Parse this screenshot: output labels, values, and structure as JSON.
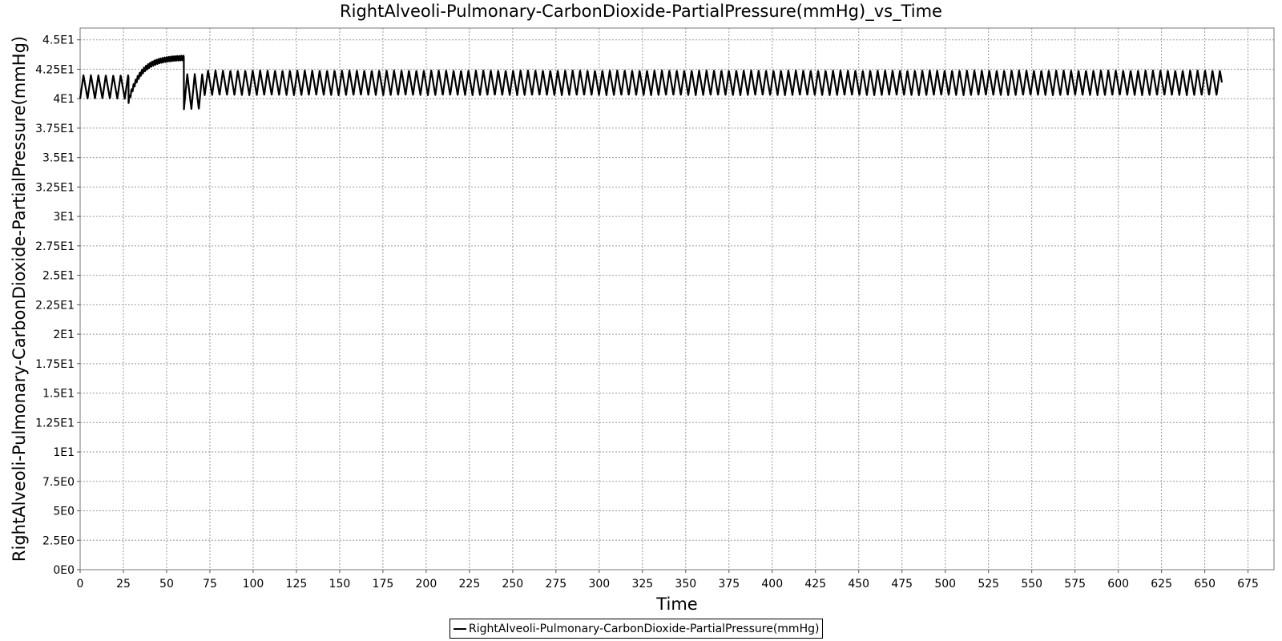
{
  "chart_data": {
    "type": "line",
    "title": "RightAlveoli-Pulmonary-CarbonDioxide-PartialPressure(mmHg)_vs_Time",
    "xlabel": "Time",
    "ylabel": "RightAlveoli-Pulmonary-CarbonDioxide-PartialPressure(mmHg)",
    "xlim": [
      0,
      690
    ],
    "ylim": [
      0,
      46
    ],
    "x_ticks": [
      0,
      25,
      50,
      75,
      100,
      125,
      150,
      175,
      200,
      225,
      250,
      275,
      300,
      325,
      350,
      375,
      400,
      425,
      450,
      475,
      500,
      525,
      550,
      575,
      600,
      625,
      650,
      675
    ],
    "x_tick_labels": [
      "0",
      "25",
      "50",
      "75",
      "100",
      "125",
      "150",
      "175",
      "200",
      "225",
      "250",
      "275",
      "300",
      "325",
      "350",
      "375",
      "400",
      "425",
      "450",
      "475",
      "500",
      "525",
      "550",
      "575",
      "600",
      "625",
      "650",
      "675"
    ],
    "y_ticks": [
      0,
      2.5,
      5,
      7.5,
      10,
      12.5,
      15,
      17.5,
      20,
      22.5,
      25,
      27.5,
      30,
      32.5,
      35,
      37.5,
      40,
      42.5,
      45
    ],
    "y_tick_labels": [
      "0E0",
      "2.5E0",
      "5E0",
      "7.5E0",
      "1E1",
      "1.25E1",
      "1.5E1",
      "1.75E1",
      "2E1",
      "2.25E1",
      "2.5E1",
      "2.75E1",
      "3E1",
      "3.25E1",
      "3.5E1",
      "3.75E1",
      "4E1",
      "4.25E1",
      "4.5E1"
    ],
    "grid": true,
    "legend_position": "bottom-center",
    "series": [
      {
        "name": "RightAlveoli-Pulmonary-CarbonDioxide-PartialPressure(mmHg)",
        "color": "#000000",
        "segments": [
          {
            "x_start": 0,
            "x_end": 28,
            "period": 4.3,
            "low": 40.0,
            "high": 42.0
          },
          {
            "x_start": 28,
            "x_end": 60,
            "rise_from": 40.0,
            "rise_to": 43.7,
            "ripple": 0.4,
            "period": 1.2
          },
          {
            "x_start": 60,
            "x_end": 72,
            "period": 4.3,
            "low": 39.1,
            "high": 42.1
          },
          {
            "x_start": 72,
            "x_end": 660,
            "period": 4.3,
            "low": 40.3,
            "high": 42.4
          }
        ]
      }
    ]
  }
}
